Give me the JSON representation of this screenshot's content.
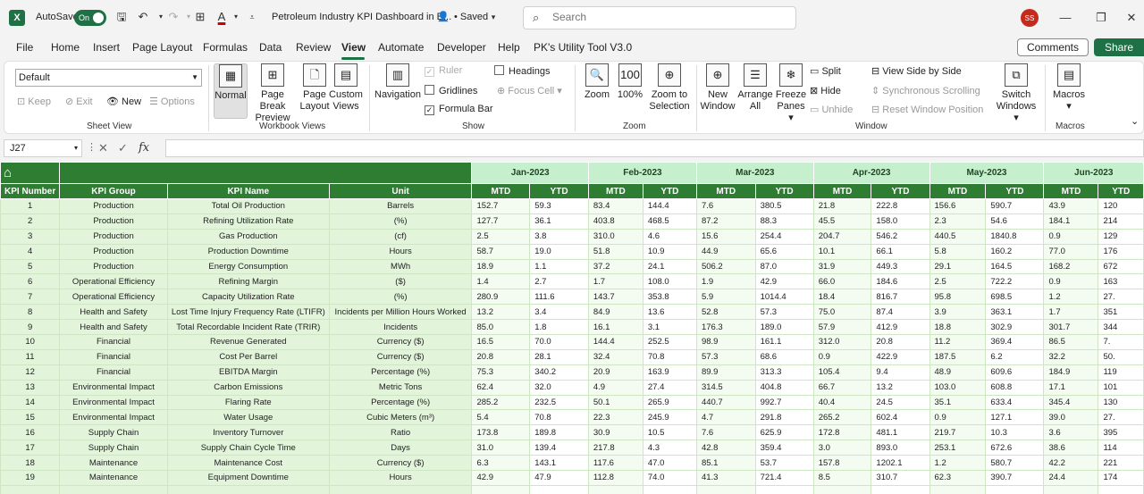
{
  "titlebar": {
    "app_letter": "X",
    "autosave_label": "AutoSave",
    "autosave_state": "On",
    "doc_title": "Petroleum Industry KPI Dashboard in E...",
    "saved_status": "• Saved",
    "search_placeholder": "Search",
    "user_initials": "SS"
  },
  "menu": {
    "items": [
      "File",
      "Home",
      "Insert",
      "Page Layout",
      "Formulas",
      "Data",
      "Review",
      "View",
      "Automate",
      "Developer",
      "Help",
      "PK's Utility Tool V3.0"
    ],
    "active": "View",
    "comments": "Comments",
    "share": "Share"
  },
  "ribbon": {
    "sheet_view": {
      "dropdown_value": "Default",
      "keep": "Keep",
      "exit": "Exit",
      "new": "New",
      "options": "Options",
      "label": "Sheet View"
    },
    "workbook_views": {
      "normal": "Normal",
      "page_break_1": "Page Break",
      "page_break_2": "Preview",
      "page_layout_1": "Page",
      "page_layout_2": "Layout",
      "custom_1": "Custom",
      "custom_2": "Views",
      "label": "Workbook Views"
    },
    "show": {
      "navigation": "Navigation",
      "ruler": "Ruler",
      "gridlines": "Gridlines",
      "formula_bar": "Formula Bar",
      "headings": "Headings",
      "focus_cell": "Focus Cell",
      "label": "Show"
    },
    "zoom": {
      "zoom": "Zoom",
      "hundred": "100%",
      "zoom_sel_1": "Zoom to",
      "zoom_sel_2": "Selection",
      "label": "Zoom"
    },
    "window": {
      "new_1": "New",
      "new_2": "Window",
      "arrange_1": "Arrange",
      "arrange_2": "All",
      "freeze_1": "Freeze",
      "freeze_2": "Panes",
      "split": "Split",
      "hide": "Hide",
      "unhide": "Unhide",
      "side_by_side": "View Side by Side",
      "sync_scroll": "Synchronous Scrolling",
      "reset_pos": "Reset Window Position",
      "switch_1": "Switch",
      "switch_2": "Windows",
      "label": "Window"
    },
    "macros": {
      "macros": "Macros",
      "label": "Macros"
    }
  },
  "formula_bar": {
    "cell_ref": "J27",
    "fx": "fx",
    "value": ""
  },
  "sheet": {
    "months": [
      "Jan-2023",
      "Feb-2023",
      "Mar-2023",
      "Apr-2023",
      "May-2023",
      "Jun-2023"
    ],
    "headers": [
      "KPI Number",
      "KPI Group",
      "KPI Name",
      "Unit"
    ],
    "mtd": "MTD",
    "ytd": "YTD",
    "rows": [
      {
        "n": "1",
        "group": "Production",
        "name": "Total Oil Production",
        "unit": "Barrels",
        "v": [
          "152.7",
          "59.3",
          "83.4",
          "144.4",
          "7.6",
          "380.5",
          "21.8",
          "222.8",
          "156.6",
          "590.7",
          "43.9",
          "120"
        ]
      },
      {
        "n": "2",
        "group": "Production",
        "name": "Refining Utilization Rate",
        "unit": "(%)",
        "v": [
          "127.7",
          "36.1",
          "403.8",
          "468.5",
          "87.2",
          "88.3",
          "45.5",
          "158.0",
          "2.3",
          "54.6",
          "184.1",
          "214"
        ]
      },
      {
        "n": "3",
        "group": "Production",
        "name": "Gas Production",
        "unit": "(cf)",
        "v": [
          "2.5",
          "3.8",
          "310.0",
          "4.6",
          "15.6",
          "254.4",
          "204.7",
          "546.2",
          "440.5",
          "1840.8",
          "0.9",
          "129"
        ]
      },
      {
        "n": "4",
        "group": "Production",
        "name": "Production Downtime",
        "unit": "Hours",
        "v": [
          "58.7",
          "19.0",
          "51.8",
          "10.9",
          "44.9",
          "65.6",
          "10.1",
          "66.1",
          "5.8",
          "160.2",
          "77.0",
          "176"
        ]
      },
      {
        "n": "5",
        "group": "Production",
        "name": "Energy Consumption",
        "unit": "MWh",
        "v": [
          "18.9",
          "1.1",
          "37.2",
          "24.1",
          "506.2",
          "87.0",
          "31.9",
          "449.3",
          "29.1",
          "164.5",
          "168.2",
          "672"
        ]
      },
      {
        "n": "6",
        "group": "Operational Efficiency",
        "name": "Refining Margin",
        "unit": "($)",
        "v": [
          "1.4",
          "2.7",
          "1.7",
          "108.0",
          "1.9",
          "42.9",
          "66.0",
          "184.6",
          "2.5",
          "722.2",
          "0.9",
          "163"
        ]
      },
      {
        "n": "7",
        "group": "Operational Efficiency",
        "name": "Capacity Utilization Rate",
        "unit": "(%)",
        "v": [
          "280.9",
          "111.6",
          "143.7",
          "353.8",
          "5.9",
          "1014.4",
          "18.4",
          "816.7",
          "95.8",
          "698.5",
          "1.2",
          "27."
        ]
      },
      {
        "n": "8",
        "group": "Health and Safety",
        "name": "Lost Time Injury Frequency Rate (LTIFR)",
        "unit": "Incidents per Million Hours Worked",
        "v": [
          "13.2",
          "3.4",
          "84.9",
          "13.6",
          "52.8",
          "57.3",
          "75.0",
          "87.4",
          "3.9",
          "363.1",
          "1.7",
          "351"
        ]
      },
      {
        "n": "9",
        "group": "Health and Safety",
        "name": "Total Recordable Incident Rate (TRIR)",
        "unit": "Incidents",
        "v": [
          "85.0",
          "1.8",
          "16.1",
          "3.1",
          "176.3",
          "189.0",
          "57.9",
          "412.9",
          "18.8",
          "302.9",
          "301.7",
          "344"
        ]
      },
      {
        "n": "10",
        "group": "Financial",
        "name": "Revenue Generated",
        "unit": "Currency ($)",
        "v": [
          "16.5",
          "70.0",
          "144.4",
          "252.5",
          "98.9",
          "161.1",
          "312.0",
          "20.8",
          "11.2",
          "369.4",
          "86.5",
          "7."
        ]
      },
      {
        "n": "11",
        "group": "Financial",
        "name": "Cost Per Barrel",
        "unit": "Currency ($)",
        "v": [
          "20.8",
          "28.1",
          "32.4",
          "70.8",
          "57.3",
          "68.6",
          "0.9",
          "422.9",
          "187.5",
          "6.2",
          "32.2",
          "50."
        ]
      },
      {
        "n": "12",
        "group": "Financial",
        "name": "EBITDA Margin",
        "unit": "Percentage (%)",
        "v": [
          "75.3",
          "340.2",
          "20.9",
          "163.9",
          "89.9",
          "313.3",
          "105.4",
          "9.4",
          "48.9",
          "609.6",
          "184.9",
          "119"
        ]
      },
      {
        "n": "13",
        "group": "Environmental Impact",
        "name": "Carbon Emissions",
        "unit": "Metric Tons",
        "v": [
          "62.4",
          "32.0",
          "4.9",
          "27.4",
          "314.5",
          "404.8",
          "66.7",
          "13.2",
          "103.0",
          "608.8",
          "17.1",
          "101"
        ]
      },
      {
        "n": "14",
        "group": "Environmental Impact",
        "name": "Flaring Rate",
        "unit": "Percentage (%)",
        "v": [
          "285.2",
          "232.5",
          "50.1",
          "265.9",
          "440.7",
          "992.7",
          "40.4",
          "24.5",
          "35.1",
          "633.4",
          "345.4",
          "130"
        ]
      },
      {
        "n": "15",
        "group": "Environmental Impact",
        "name": "Water Usage",
        "unit": "Cubic Meters (m³)",
        "v": [
          "5.4",
          "70.8",
          "22.3",
          "245.9",
          "4.7",
          "291.8",
          "265.2",
          "602.4",
          "0.9",
          "127.1",
          "39.0",
          "27."
        ]
      },
      {
        "n": "16",
        "group": "Supply Chain",
        "name": "Inventory Turnover",
        "unit": "Ratio",
        "v": [
          "173.8",
          "189.8",
          "30.9",
          "10.5",
          "7.6",
          "625.9",
          "172.8",
          "481.1",
          "219.7",
          "10.3",
          "3.6",
          "395"
        ]
      },
      {
        "n": "17",
        "group": "Supply Chain",
        "name": "Supply Chain Cycle Time",
        "unit": "Days",
        "v": [
          "31.0",
          "139.4",
          "217.8",
          "4.3",
          "42.8",
          "359.4",
          "3.0",
          "893.0",
          "253.1",
          "672.6",
          "38.6",
          "114"
        ]
      },
      {
        "n": "18",
        "group": "Maintenance",
        "name": "Maintenance Cost",
        "unit": "Currency ($)",
        "v": [
          "6.3",
          "143.1",
          "117.6",
          "47.0",
          "85.1",
          "53.7",
          "157.8",
          "1202.1",
          "1.2",
          "580.7",
          "42.2",
          "221"
        ]
      },
      {
        "n": "19",
        "group": "Maintenance",
        "name": "Equipment Downtime",
        "unit": "Hours",
        "v": [
          "42.9",
          "47.9",
          "112.8",
          "74.0",
          "41.3",
          "721.4",
          "8.5",
          "310.7",
          "62.3",
          "390.7",
          "24.4",
          "174"
        ]
      }
    ]
  }
}
